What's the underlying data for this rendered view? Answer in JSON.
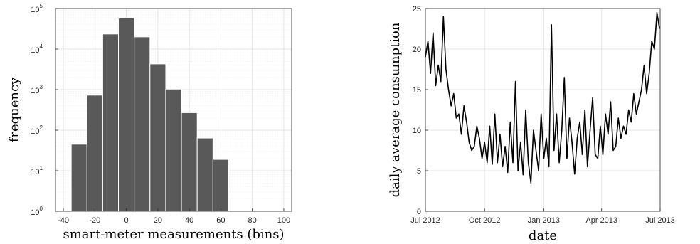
{
  "chart_data": [
    {
      "type": "bar",
      "subtype": "histogram",
      "xlabel": "smart-meter measurements (bins)",
      "ylabel": "frequency",
      "yscale": "log",
      "xlim": [
        -45,
        105
      ],
      "ylim": [
        1,
        100000
      ],
      "xticks": [
        "-40",
        "-20",
        "0",
        "20",
        "40",
        "60",
        "80",
        "100"
      ],
      "ytick_base": "10",
      "ytick_exponents": [
        "0",
        "1",
        "2",
        "3",
        "4",
        "5"
      ],
      "grid": true,
      "bar_color": "#595959",
      "bin_width": 10,
      "bin_centers": [
        -30,
        -20,
        -10,
        0,
        10,
        20,
        30,
        40,
        50,
        60,
        70,
        80,
        90
      ],
      "values": [
        45,
        730,
        23500,
        58000,
        20000,
        4300,
        1030,
        270,
        64,
        19,
        null,
        null,
        null
      ]
    },
    {
      "type": "line",
      "xlabel": "date",
      "ylabel": "daily average consumption",
      "xlim": [
        "2012-07-01",
        "2013-07-01"
      ],
      "ylim": [
        0,
        25
      ],
      "xticks": [
        "Jul 2012",
        "Oct 2012",
        "Jan 2013",
        "Apr 2013",
        "Jul 2013"
      ],
      "yticks": [
        "0",
        "5",
        "10",
        "15",
        "20",
        "25"
      ],
      "grid": true,
      "line_color": "#000000",
      "series": [
        {
          "x": [
            "2012-07-01",
            "2012-07-05",
            "2012-07-09",
            "2012-07-13",
            "2012-07-17",
            "2012-07-21",
            "2012-07-25",
            "2012-07-29",
            "2012-08-02",
            "2012-08-06",
            "2012-08-10",
            "2012-08-14",
            "2012-08-18",
            "2012-08-22",
            "2012-08-26",
            "2012-08-30",
            "2012-09-03",
            "2012-09-07",
            "2012-09-11",
            "2012-09-15",
            "2012-09-19",
            "2012-09-23",
            "2012-09-27",
            "2012-10-01",
            "2012-10-05",
            "2012-10-09",
            "2012-10-13",
            "2012-10-17",
            "2012-10-21",
            "2012-10-25",
            "2012-10-29",
            "2012-11-02",
            "2012-11-06",
            "2012-11-10",
            "2012-11-14",
            "2012-11-18",
            "2012-11-22",
            "2012-11-26",
            "2012-11-30",
            "2012-12-04",
            "2012-12-08",
            "2012-12-12",
            "2012-12-16",
            "2012-12-20",
            "2012-12-24",
            "2012-12-28",
            "2013-01-01",
            "2013-01-05",
            "2013-01-09",
            "2013-01-13",
            "2013-01-17",
            "2013-01-21",
            "2013-01-25",
            "2013-01-29",
            "2013-02-02",
            "2013-02-06",
            "2013-02-10",
            "2013-02-14",
            "2013-02-18",
            "2013-02-22",
            "2013-02-26",
            "2013-03-02",
            "2013-03-06",
            "2013-03-10",
            "2013-03-14",
            "2013-03-18",
            "2013-03-22",
            "2013-03-26",
            "2013-03-30",
            "2013-04-03",
            "2013-04-07",
            "2013-04-11",
            "2013-04-15",
            "2013-04-19",
            "2013-04-23",
            "2013-04-27",
            "2013-05-01",
            "2013-05-05",
            "2013-05-09",
            "2013-05-13",
            "2013-05-17",
            "2013-05-21",
            "2013-05-25",
            "2013-05-29",
            "2013-06-02",
            "2013-06-06",
            "2013-06-10",
            "2013-06-14",
            "2013-06-18",
            "2013-06-22",
            "2013-06-26",
            "2013-06-30"
          ],
          "y": [
            19.0,
            21.0,
            17.0,
            22.0,
            15.5,
            18.0,
            16.0,
            24.0,
            17.5,
            15.0,
            13.0,
            14.5,
            11.5,
            12.0,
            9.5,
            13.0,
            11.0,
            8.5,
            7.5,
            8.0,
            10.5,
            9.0,
            6.5,
            8.5,
            6.0,
            10.5,
            5.8,
            12.0,
            6.0,
            9.5,
            5.5,
            8.0,
            4.8,
            11.0,
            6.0,
            16.0,
            5.0,
            8.5,
            4.5,
            12.5,
            6.0,
            3.5,
            10.0,
            7.5,
            5.0,
            12.0,
            6.5,
            9.0,
            5.5,
            23.0,
            7.5,
            12.0,
            6.0,
            10.0,
            16.5,
            6.5,
            11.5,
            8.5,
            4.6,
            9.0,
            11.0,
            7.0,
            12.5,
            5.5,
            10.0,
            14.0,
            7.0,
            6.5,
            10.5,
            7.0,
            12.0,
            9.5,
            13.5,
            7.5,
            8.0,
            11.5,
            9.0,
            10.5,
            9.5,
            12.5,
            11.0,
            14.5,
            12.0,
            13.5,
            15.0,
            18.0,
            14.5,
            17.0,
            21.0,
            20.0,
            24.5,
            22.5
          ]
        }
      ]
    }
  ]
}
